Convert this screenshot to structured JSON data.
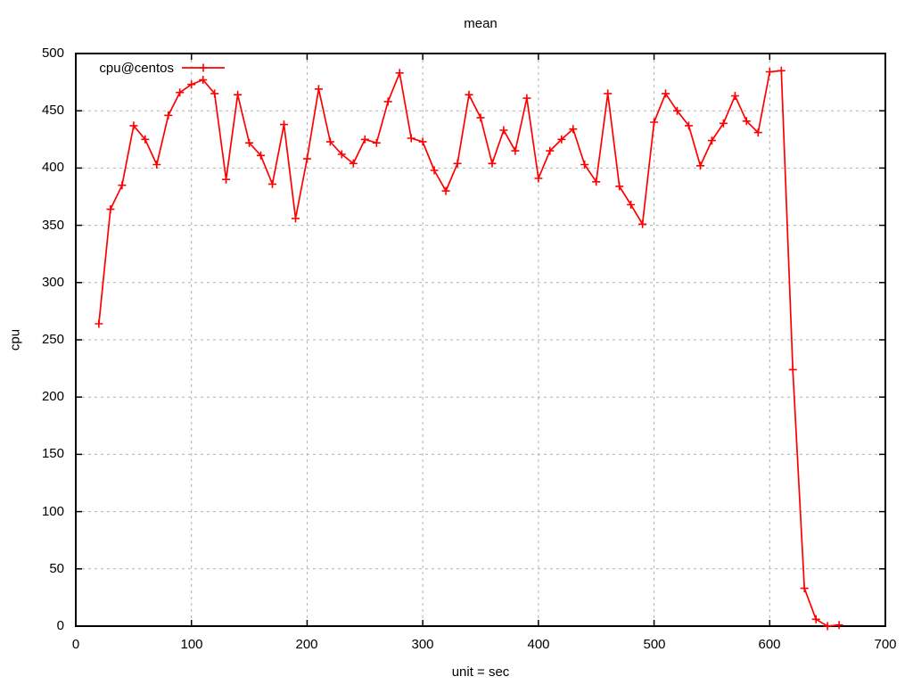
{
  "chart_data": {
    "type": "line",
    "title": "mean",
    "xlabel": "unit = sec",
    "ylabel": "cpu",
    "xlim": [
      0,
      700
    ],
    "ylim": [
      0,
      500
    ],
    "xticks": [
      0,
      100,
      200,
      300,
      400,
      500,
      600,
      700
    ],
    "yticks": [
      0,
      50,
      100,
      150,
      200,
      250,
      300,
      350,
      400,
      450,
      500
    ],
    "grid": true,
    "legend_position": "top-left-inside",
    "colors": {
      "background": "#ffffff",
      "grid": "#b0b0b0",
      "axis": "#000000",
      "series": "#ff0000"
    },
    "series": [
      {
        "name": "cpu@centos",
        "color": "#ff0000",
        "marker": "plus",
        "x": [
          20,
          30,
          40,
          50,
          60,
          70,
          80,
          90,
          100,
          110,
          120,
          130,
          140,
          150,
          160,
          170,
          180,
          190,
          200,
          210,
          220,
          230,
          240,
          250,
          260,
          270,
          280,
          290,
          300,
          310,
          320,
          330,
          340,
          350,
          360,
          370,
          380,
          390,
          400,
          410,
          420,
          430,
          440,
          450,
          460,
          470,
          480,
          490,
          500,
          510,
          520,
          530,
          540,
          550,
          560,
          570,
          580,
          590,
          600,
          610,
          620,
          630,
          640,
          650,
          660
        ],
        "y": [
          264,
          364,
          385,
          437,
          425,
          403,
          446,
          466,
          473,
          477,
          465,
          390,
          464,
          422,
          411,
          386,
          438,
          356,
          408,
          469,
          423,
          412,
          404,
          425,
          422,
          458,
          483,
          426,
          423,
          398,
          380,
          404,
          464,
          444,
          404,
          433,
          415,
          461,
          391,
          415,
          425,
          434,
          403,
          388,
          465,
          384,
          368,
          351,
          440,
          465,
          450,
          437,
          402,
          424,
          439,
          463,
          441,
          431,
          484,
          485,
          224,
          33,
          6,
          0,
          1
        ]
      }
    ]
  }
}
